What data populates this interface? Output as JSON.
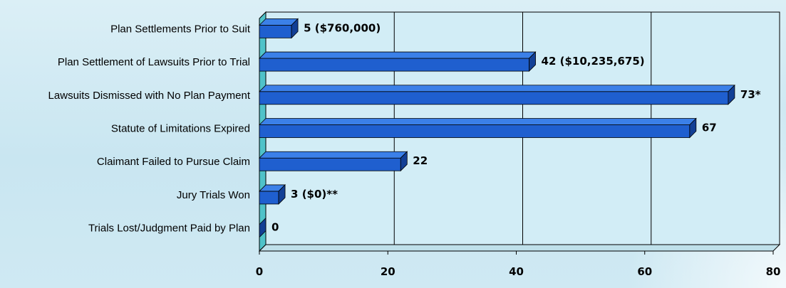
{
  "chart_data": {
    "type": "bar",
    "orientation": "horizontal",
    "categories": [
      "Plan Settlements Prior to Suit",
      "Plan Settlement of Lawsuits Prior to Trial",
      "Lawsuits Dismissed with No Plan Payment",
      "Statute of Limitations Expired",
      "Claimant Failed to Pursue Claim",
      "Jury Trials Won",
      "Trials Lost/Judgment Paid by Plan"
    ],
    "values": [
      5,
      42,
      73,
      67,
      22,
      3,
      0
    ],
    "data_labels": [
      "5  ($760,000)",
      "42  ($10,235,675)",
      "73*",
      "67",
      "22",
      "3  ($0)**",
      "0"
    ],
    "xlim": [
      0,
      80
    ],
    "xticks": [
      "0",
      "20",
      "40",
      "60",
      "80"
    ],
    "grid": true,
    "style_3d": true,
    "bar_color": "#1f5fcf",
    "bar_top_color": "#3b80e8",
    "bar_side_color": "#123f95",
    "wall_color": "#4fc2c9"
  }
}
